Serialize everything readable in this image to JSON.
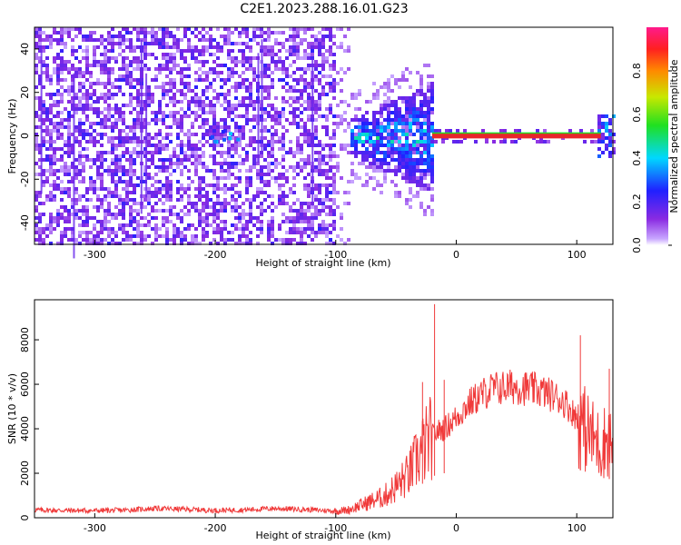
{
  "title": "C2E1.2023.288.16.01.G23",
  "colors": {
    "snr_line": "#f03a3a",
    "carrier_band": "#e8262a",
    "background": "#ffffff"
  },
  "chart_data": [
    {
      "type": "heatmap",
      "xlabel": "Height of straight line (km)",
      "ylabel": "Frequency (Hz)",
      "xlim": [
        -350,
        130
      ],
      "ylim": [
        -50,
        50
      ],
      "x_ticks": [
        -300,
        -200,
        -100,
        0,
        100
      ],
      "y_ticks": [
        -40,
        -20,
        0,
        20,
        40
      ],
      "x_tick_labels": [
        "-300",
        "-200",
        "-100",
        "0",
        "100"
      ],
      "y_tick_labels": [
        "-40",
        "-20",
        "0",
        "20",
        "40"
      ],
      "grid": false,
      "colorbar": {
        "label": "Normalized spectral amplitude",
        "range": [
          0,
          1
        ],
        "ticks": [
          0.0,
          0.2,
          0.4,
          0.6,
          0.8
        ],
        "tick_labels": [
          "0.0",
          "0.2",
          "0.4",
          "0.6",
          "0.8"
        ],
        "colormap": "rainbow (purple → blue → cyan → green → yellow → red → magenta)"
      },
      "features": [
        {
          "x_range": [
            -350,
            -100
          ],
          "freq_range": [
            -50,
            50
          ],
          "amplitude": 0.1
        },
        {
          "x_range": [
            -100,
            -20
          ],
          "freq_range": [
            -25,
            25
          ],
          "amplitude": 0.3
        },
        {
          "x_range": [
            -20,
            120
          ],
          "freq_range": [
            -1,
            1
          ],
          "amplitude": 0.85
        }
      ]
    },
    {
      "type": "line",
      "xlabel": "Height of straight line (km)",
      "ylabel": "SNR (10 * v/v)",
      "xlim": [
        -350,
        130
      ],
      "ylim": [
        0,
        9800
      ],
      "x_ticks": [
        -300,
        -200,
        -100,
        0,
        100
      ],
      "y_ticks": [
        0,
        2000,
        4000,
        6000,
        8000
      ],
      "x_tick_labels": [
        "-300",
        "-200",
        "-100",
        "0",
        "100"
      ],
      "y_tick_labels": [
        "0",
        "2000",
        "4000",
        "6000",
        "8000"
      ],
      "grid": false,
      "x": [
        -350,
        -325,
        -300,
        -275,
        -250,
        -225,
        -200,
        -175,
        -150,
        -125,
        -100,
        -90,
        -80,
        -70,
        -60,
        -50,
        -40,
        -30,
        -20,
        -15,
        -10,
        0,
        10,
        20,
        30,
        40,
        50,
        60,
        70,
        80,
        90,
        100,
        105,
        110,
        115,
        120,
        125,
        130
      ],
      "y": [
        350,
        330,
        320,
        340,
        420,
        380,
        330,
        360,
        420,
        370,
        300,
        350,
        550,
        750,
        950,
        1400,
        1900,
        2900,
        3700,
        3900,
        4000,
        4500,
        5100,
        5500,
        5800,
        5850,
        5900,
        5800,
        5700,
        5500,
        5200,
        4500,
        4100,
        3800,
        3500,
        3200,
        3600,
        3300
      ],
      "spikes": [
        {
          "x": -28,
          "y": 6100
        },
        {
          "x": -18,
          "y": 9600
        },
        {
          "x": -10,
          "y": 6200
        },
        {
          "x": 103,
          "y": 8200
        },
        {
          "x": 127,
          "y": 6700
        }
      ]
    }
  ]
}
